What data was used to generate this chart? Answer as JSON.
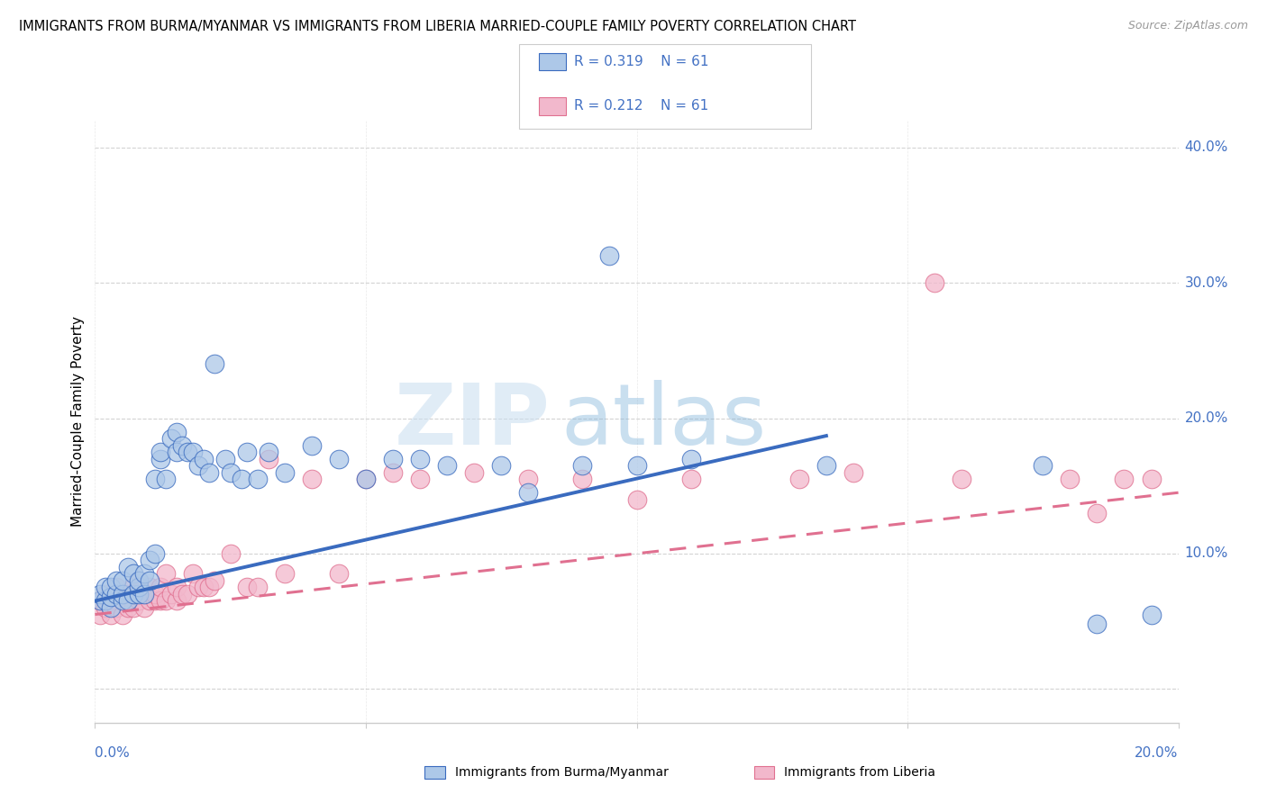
{
  "title": "IMMIGRANTS FROM BURMA/MYANMAR VS IMMIGRANTS FROM LIBERIA MARRIED-COUPLE FAMILY POVERTY CORRELATION CHART",
  "source": "Source: ZipAtlas.com",
  "ylabel": "Married-Couple Family Poverty",
  "legend_label1": "Immigrants from Burma/Myanmar",
  "legend_label2": "Immigrants from Liberia",
  "R1": 0.319,
  "N1": 61,
  "R2": 0.212,
  "N2": 61,
  "color_blue": "#adc8e8",
  "color_pink": "#f2b8cc",
  "color_blue_dark": "#3a6bbf",
  "color_pink_dark": "#e07090",
  "color_text_blue": "#4472c4",
  "color_grid": "#cccccc",
  "color_dashed_grid": "#c8c8c8",
  "background_color": "#ffffff",
  "xlim": [
    0.0,
    0.2
  ],
  "ylim": [
    -0.025,
    0.42
  ],
  "blue_line_x0": 0.0,
  "blue_line_y0": 0.065,
  "blue_line_x1": 0.135,
  "blue_line_y1": 0.187,
  "pink_line_x0": 0.0,
  "pink_line_y0": 0.055,
  "pink_line_x1": 0.2,
  "pink_line_y1": 0.145,
  "blue_scatter_x": [
    0.001,
    0.001,
    0.002,
    0.002,
    0.003,
    0.003,
    0.003,
    0.004,
    0.004,
    0.005,
    0.005,
    0.005,
    0.006,
    0.006,
    0.007,
    0.007,
    0.008,
    0.008,
    0.008,
    0.009,
    0.009,
    0.01,
    0.01,
    0.011,
    0.011,
    0.012,
    0.012,
    0.013,
    0.014,
    0.015,
    0.015,
    0.016,
    0.017,
    0.018,
    0.019,
    0.02,
    0.021,
    0.022,
    0.024,
    0.025,
    0.027,
    0.028,
    0.03,
    0.032,
    0.035,
    0.04,
    0.045,
    0.05,
    0.055,
    0.06,
    0.065,
    0.075,
    0.08,
    0.09,
    0.095,
    0.1,
    0.11,
    0.135,
    0.175,
    0.185,
    0.195
  ],
  "blue_scatter_y": [
    0.065,
    0.07,
    0.065,
    0.075,
    0.06,
    0.068,
    0.075,
    0.07,
    0.08,
    0.065,
    0.07,
    0.08,
    0.065,
    0.09,
    0.07,
    0.085,
    0.07,
    0.075,
    0.08,
    0.07,
    0.085,
    0.08,
    0.095,
    0.1,
    0.155,
    0.17,
    0.175,
    0.155,
    0.185,
    0.19,
    0.175,
    0.18,
    0.175,
    0.175,
    0.165,
    0.17,
    0.16,
    0.24,
    0.17,
    0.16,
    0.155,
    0.175,
    0.155,
    0.175,
    0.16,
    0.18,
    0.17,
    0.155,
    0.17,
    0.17,
    0.165,
    0.165,
    0.145,
    0.165,
    0.32,
    0.165,
    0.17,
    0.165,
    0.165,
    0.048,
    0.055
  ],
  "pink_scatter_x": [
    0.001,
    0.001,
    0.002,
    0.002,
    0.003,
    0.003,
    0.004,
    0.004,
    0.004,
    0.005,
    0.005,
    0.006,
    0.006,
    0.007,
    0.007,
    0.008,
    0.008,
    0.008,
    0.009,
    0.009,
    0.01,
    0.01,
    0.011,
    0.011,
    0.012,
    0.012,
    0.013,
    0.013,
    0.014,
    0.015,
    0.015,
    0.016,
    0.017,
    0.018,
    0.019,
    0.02,
    0.021,
    0.022,
    0.025,
    0.028,
    0.03,
    0.032,
    0.035,
    0.04,
    0.045,
    0.05,
    0.055,
    0.06,
    0.07,
    0.08,
    0.09,
    0.1,
    0.11,
    0.13,
    0.14,
    0.155,
    0.16,
    0.18,
    0.185,
    0.19,
    0.195
  ],
  "pink_scatter_y": [
    0.055,
    0.065,
    0.06,
    0.07,
    0.055,
    0.065,
    0.06,
    0.07,
    0.075,
    0.055,
    0.065,
    0.06,
    0.07,
    0.06,
    0.075,
    0.065,
    0.075,
    0.08,
    0.06,
    0.07,
    0.065,
    0.075,
    0.065,
    0.07,
    0.065,
    0.075,
    0.065,
    0.085,
    0.07,
    0.065,
    0.075,
    0.07,
    0.07,
    0.085,
    0.075,
    0.075,
    0.075,
    0.08,
    0.1,
    0.075,
    0.075,
    0.17,
    0.085,
    0.155,
    0.085,
    0.155,
    0.16,
    0.155,
    0.16,
    0.155,
    0.155,
    0.14,
    0.155,
    0.155,
    0.16,
    0.3,
    0.155,
    0.155,
    0.13,
    0.155,
    0.155
  ]
}
